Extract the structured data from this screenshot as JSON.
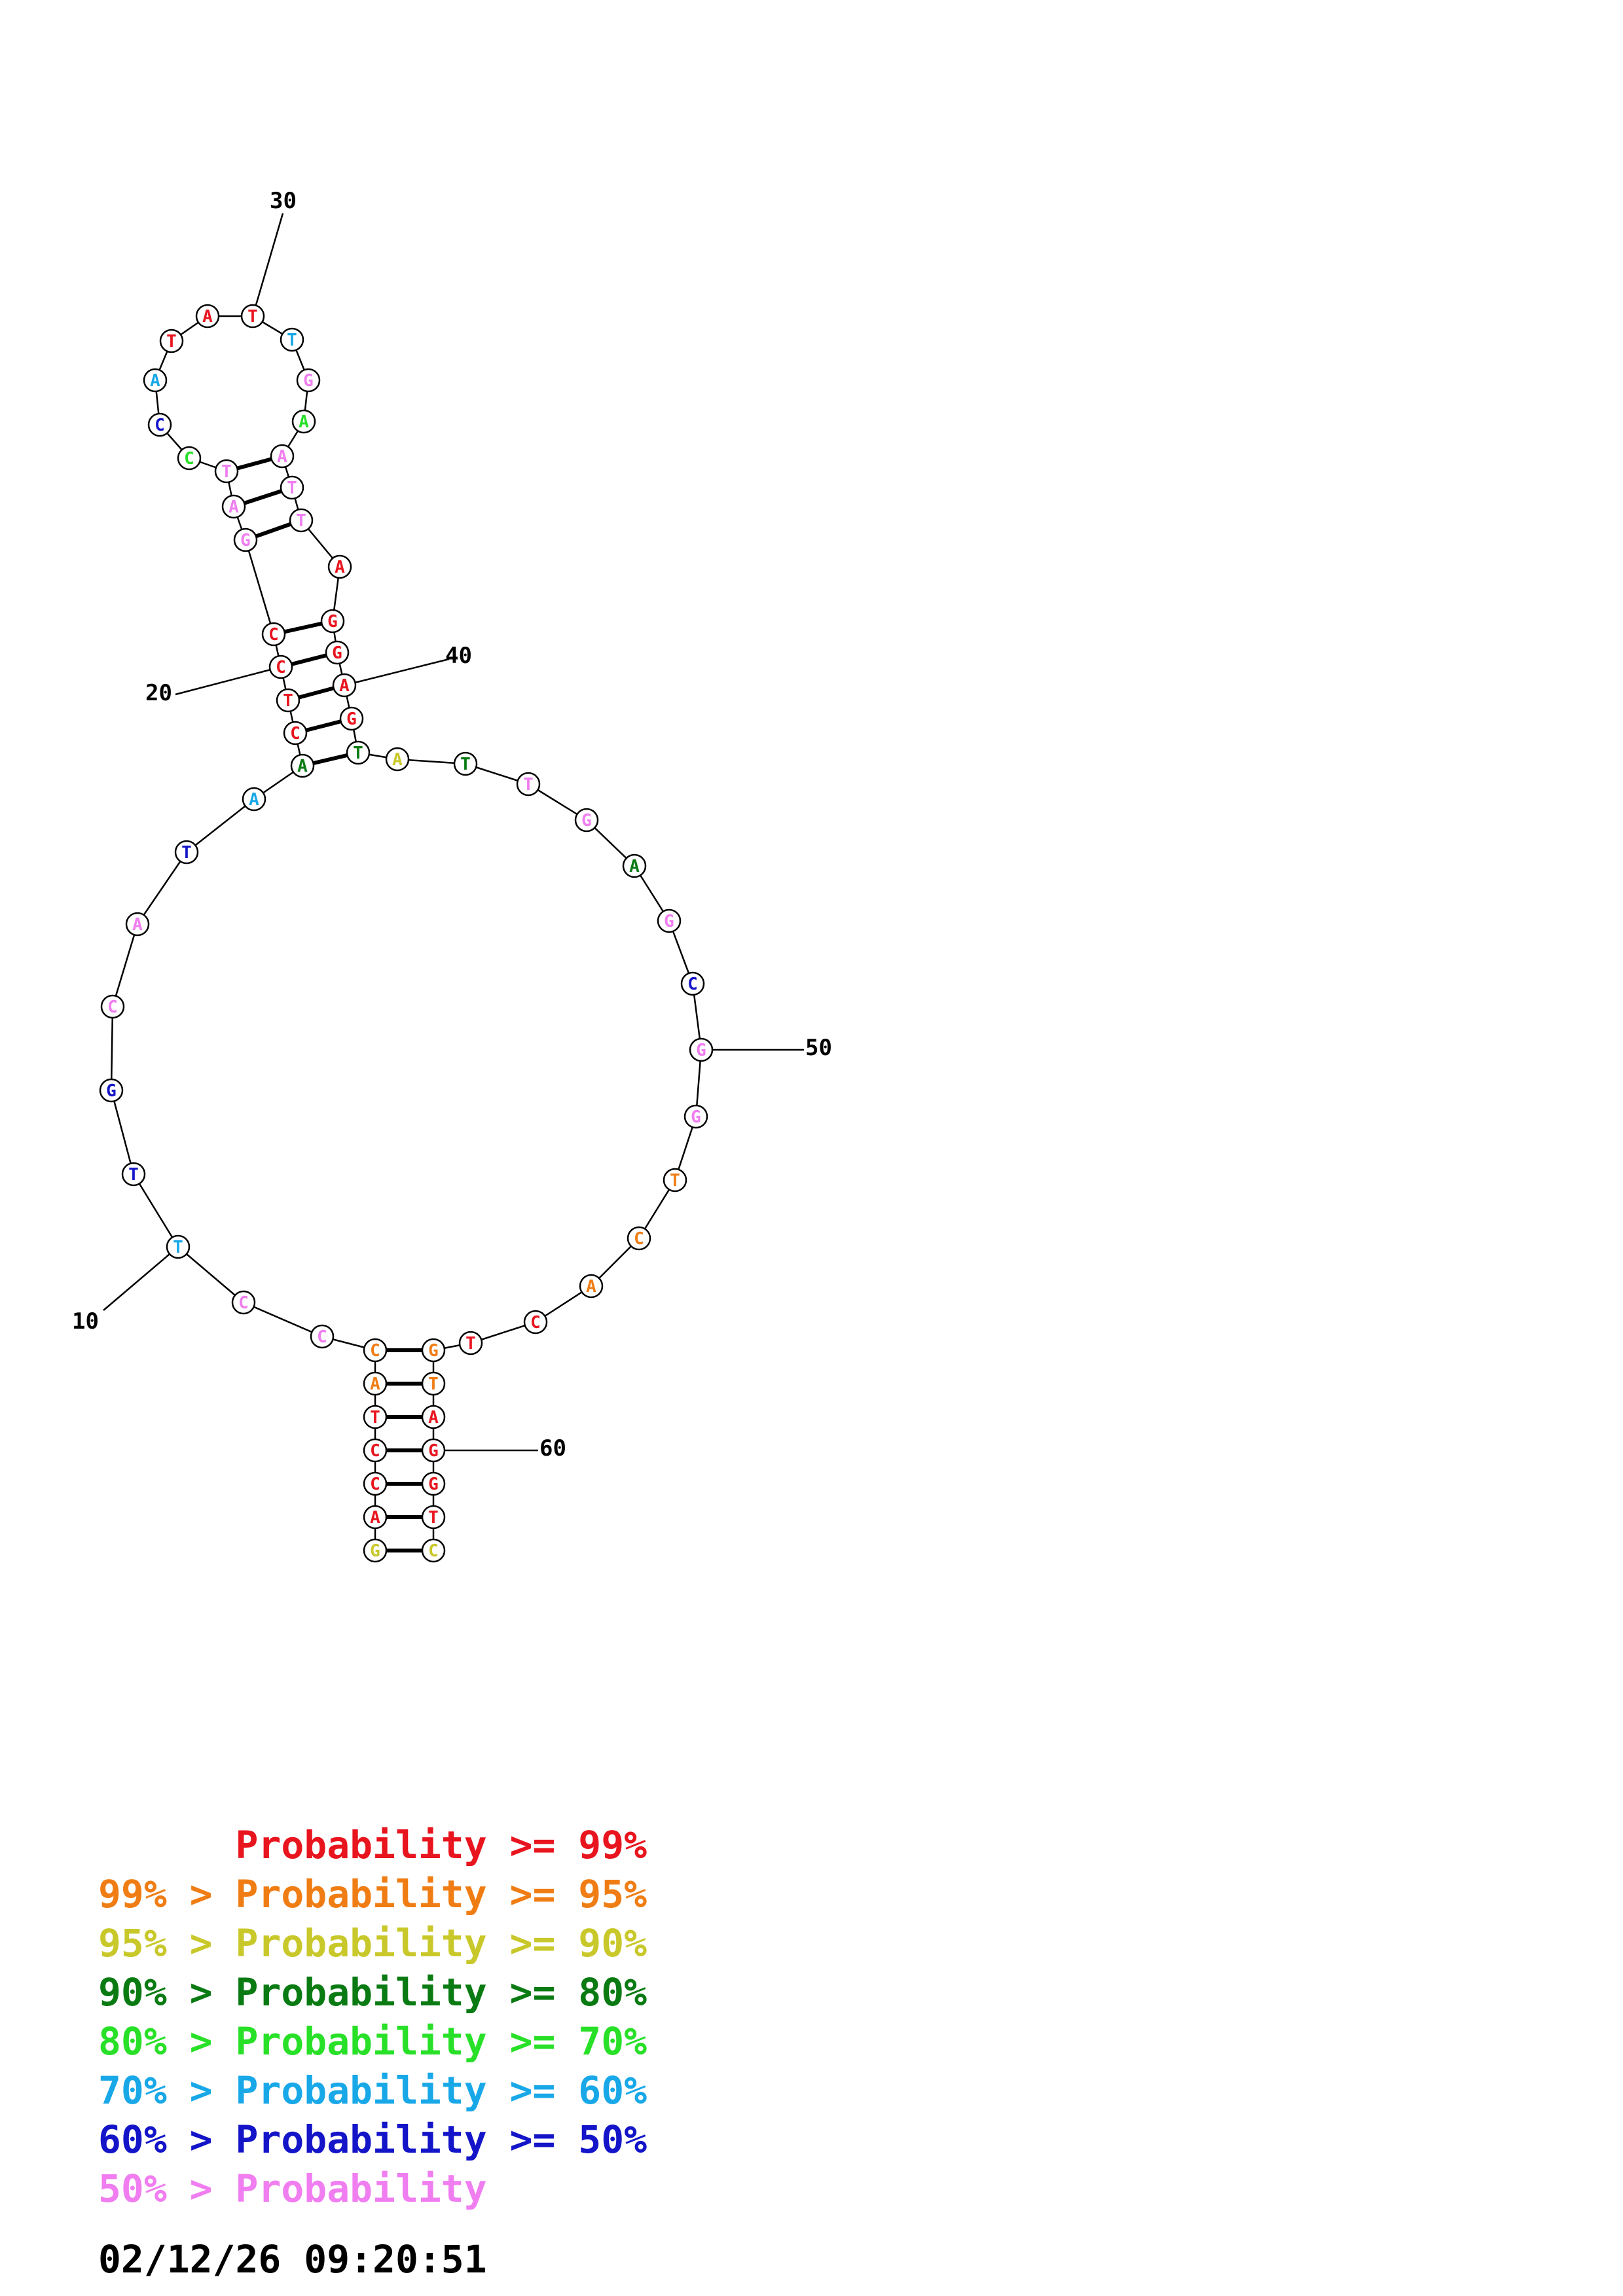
{
  "colors": {
    "p99": "#e8141e",
    "p95": "#f07d14",
    "p90": "#c9c82a",
    "p80": "#0a7a12",
    "p70": "#28e028",
    "p60": "#18a8e8",
    "p50": "#1414c8",
    "low": "#f07ef0"
  },
  "nucleotides": [
    {
      "base": "G",
      "color": "p90"
    },
    {
      "base": "A",
      "color": "p99"
    },
    {
      "base": "C",
      "color": "p99"
    },
    {
      "base": "C",
      "color": "p99"
    },
    {
      "base": "T",
      "color": "p99"
    },
    {
      "base": "A",
      "color": "p95"
    },
    {
      "base": "C",
      "color": "p95"
    },
    {
      "base": "C",
      "color": "low"
    },
    {
      "base": "C",
      "color": "low"
    },
    {
      "base": "T",
      "color": "p60"
    },
    {
      "base": "T",
      "color": "p50"
    },
    {
      "base": "G",
      "color": "p50"
    },
    {
      "base": "C",
      "color": "low"
    },
    {
      "base": "A",
      "color": "low"
    },
    {
      "base": "T",
      "color": "p50"
    },
    {
      "base": "A",
      "color": "p60"
    },
    {
      "base": "A",
      "color": "p80"
    },
    {
      "base": "C",
      "color": "p99"
    },
    {
      "base": "T",
      "color": "p99"
    },
    {
      "base": "C",
      "color": "p99"
    },
    {
      "base": "C",
      "color": "p99"
    },
    {
      "base": "G",
      "color": "low"
    },
    {
      "base": "A",
      "color": "low"
    },
    {
      "base": "T",
      "color": "low"
    },
    {
      "base": "C",
      "color": "p70"
    },
    {
      "base": "C",
      "color": "p50"
    },
    {
      "base": "A",
      "color": "p60"
    },
    {
      "base": "T",
      "color": "p99"
    },
    {
      "base": "A",
      "color": "p99"
    },
    {
      "base": "T",
      "color": "p99"
    },
    {
      "base": "T",
      "color": "p60"
    },
    {
      "base": "G",
      "color": "low"
    },
    {
      "base": "A",
      "color": "p70"
    },
    {
      "base": "A",
      "color": "low"
    },
    {
      "base": "T",
      "color": "low"
    },
    {
      "base": "T",
      "color": "low"
    },
    {
      "base": "A",
      "color": "p99"
    },
    {
      "base": "G",
      "color": "p99"
    },
    {
      "base": "G",
      "color": "p99"
    },
    {
      "base": "A",
      "color": "p99"
    },
    {
      "base": "G",
      "color": "p99"
    },
    {
      "base": "T",
      "color": "p80"
    },
    {
      "base": "A",
      "color": "p90"
    },
    {
      "base": "T",
      "color": "p80"
    },
    {
      "base": "T",
      "color": "low"
    },
    {
      "base": "G",
      "color": "low"
    },
    {
      "base": "A",
      "color": "p80"
    },
    {
      "base": "G",
      "color": "low"
    },
    {
      "base": "C",
      "color": "p50"
    },
    {
      "base": "G",
      "color": "low"
    },
    {
      "base": "G",
      "color": "low"
    },
    {
      "base": "T",
      "color": "p95"
    },
    {
      "base": "C",
      "color": "p95"
    },
    {
      "base": "A",
      "color": "p95"
    },
    {
      "base": "C",
      "color": "p99"
    },
    {
      "base": "T",
      "color": "p99"
    },
    {
      "base": "G",
      "color": "p95"
    },
    {
      "base": "T",
      "color": "p95"
    },
    {
      "base": "A",
      "color": "p99"
    },
    {
      "base": "G",
      "color": "p99"
    },
    {
      "base": "G",
      "color": "p99"
    },
    {
      "base": "T",
      "color": "p99"
    },
    {
      "base": "C",
      "color": "p90"
    }
  ],
  "pairs": [
    [
      1,
      63
    ],
    [
      2,
      62
    ],
    [
      3,
      61
    ],
    [
      4,
      60
    ],
    [
      5,
      59
    ],
    [
      6,
      58
    ],
    [
      7,
      57
    ],
    [
      17,
      42
    ],
    [
      18,
      41
    ],
    [
      19,
      40
    ],
    [
      20,
      39
    ],
    [
      21,
      38
    ],
    [
      22,
      36
    ],
    [
      23,
      35
    ],
    [
      24,
      34
    ]
  ],
  "index_labels": [
    {
      "n": 10,
      "text": "10"
    },
    {
      "n": 20,
      "text": "20"
    },
    {
      "n": 30,
      "text": "30"
    },
    {
      "n": 40,
      "text": "40"
    },
    {
      "n": 50,
      "text": "50"
    },
    {
      "n": 60,
      "text": "60"
    }
  ],
  "legend": [
    {
      "text": "      Probability >= 99%",
      "color": "p99"
    },
    {
      "text": "99% > Probability >= 95%",
      "color": "p95"
    },
    {
      "text": "95% > Probability >= 90%",
      "color": "p90"
    },
    {
      "text": "90% > Probability >= 80%",
      "color": "p80"
    },
    {
      "text": "80% > Probability >= 70%",
      "color": "p70"
    },
    {
      "text": "70% > Probability >= 60%",
      "color": "p60"
    },
    {
      "text": "60% > Probability >= 50%",
      "color": "p50"
    },
    {
      "text": "50% > Probability",
      "color": "low"
    }
  ],
  "timestamp": "02/12/26 09:20:51"
}
